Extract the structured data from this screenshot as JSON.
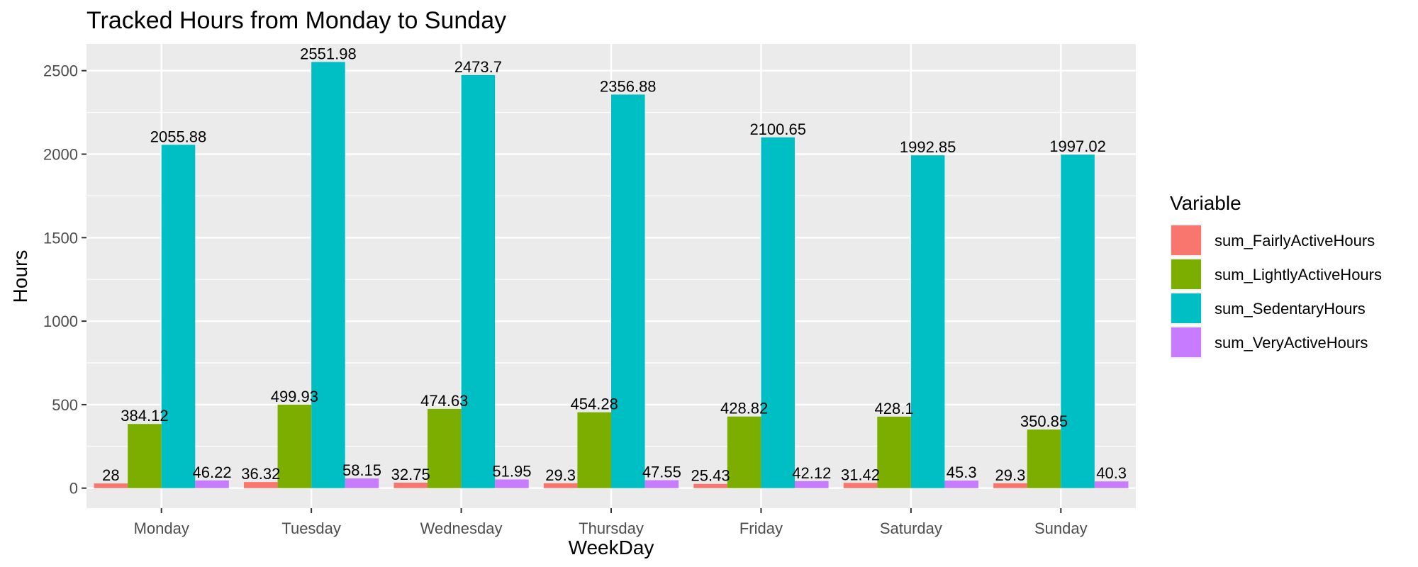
{
  "chart_data": {
    "type": "bar",
    "title": "Tracked Hours from Monday to Sunday",
    "xlabel": "WeekDay",
    "ylabel": "Hours",
    "ylim": [
      -120,
      2660
    ],
    "yticks": [
      0,
      500,
      1000,
      1500,
      2000,
      2500
    ],
    "grid": true,
    "legend_position": "right",
    "legend_title": "Variable",
    "categories": [
      "Monday",
      "Tuesday",
      "Wednesday",
      "Thursday",
      "Friday",
      "Saturday",
      "Sunday"
    ],
    "series": [
      {
        "name": "sum_FairlyActiveHours",
        "color": "#F8766D",
        "values": [
          28,
          36.32,
          32.75,
          29.3,
          25.43,
          31.42,
          29.3
        ]
      },
      {
        "name": "sum_LightlyActiveHours",
        "color": "#7CAE00",
        "values": [
          384.12,
          499.93,
          474.63,
          454.28,
          428.82,
          428.1,
          350.85
        ]
      },
      {
        "name": "sum_SedentaryHours",
        "color": "#00BFC4",
        "values": [
          2055.88,
          2551.98,
          2473.7,
          2356.88,
          2100.65,
          1992.85,
          1997.02
        ]
      },
      {
        "name": "sum_VeryActiveHours",
        "color": "#C77CFF",
        "values": [
          46.22,
          58.15,
          51.95,
          47.55,
          42.12,
          45.3,
          40.3
        ]
      }
    ]
  }
}
